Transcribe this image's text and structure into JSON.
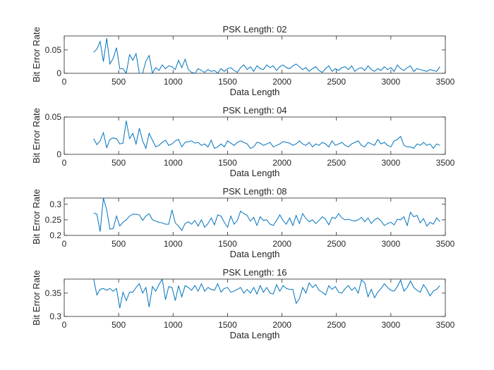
{
  "chart_data": [
    {
      "type": "line",
      "title": "PSK Length: 02",
      "xlabel": "Data Length",
      "ylabel": "Bit Error Rate",
      "xlim": [
        0,
        3500
      ],
      "ylim": [
        0,
        0.08
      ],
      "xticks": [
        0,
        500,
        1000,
        1500,
        2000,
        2500,
        3000,
        3500
      ],
      "xtick_labels": [
        "0",
        "500",
        "1000",
        "1500",
        "2000",
        "2500",
        "3000",
        "3500"
      ],
      "yticks": [
        0,
        0.05
      ],
      "ytick_labels": [
        "0",
        "0.05"
      ],
      "line_color": "#0072bd",
      "x": [
        270,
        300,
        330,
        360,
        390,
        420,
        450,
        480,
        510,
        540,
        570,
        600,
        630,
        660,
        690,
        720,
        750,
        780,
        810,
        840,
        870,
        900,
        930,
        960,
        990,
        1020,
        1050,
        1080,
        1110,
        1140,
        1170,
        1200,
        1230,
        1260,
        1290,
        1320,
        1350,
        1380,
        1410,
        1440,
        1470,
        1500,
        1530,
        1560,
        1590,
        1620,
        1650,
        1680,
        1710,
        1740,
        1770,
        1800,
        1830,
        1860,
        1890,
        1920,
        1950,
        1980,
        2010,
        2040,
        2070,
        2100,
        2130,
        2160,
        2190,
        2220,
        2250,
        2280,
        2310,
        2340,
        2370,
        2400,
        2430,
        2460,
        2490,
        2520,
        2550,
        2580,
        2610,
        2640,
        2670,
        2700,
        2730,
        2760,
        2790,
        2820,
        2850,
        2880,
        2910,
        2940,
        2970,
        3000,
        3030,
        3060,
        3090,
        3120,
        3150,
        3180,
        3210,
        3240,
        3270,
        3300,
        3330,
        3360,
        3390,
        3420,
        3450
      ],
      "y": [
        0.045,
        0.052,
        0.068,
        0.025,
        0.075,
        0.02,
        0.032,
        0.055,
        0.01,
        0.01,
        0.0,
        0.04,
        0.028,
        0.042,
        0.0,
        0.0,
        0.026,
        0.038,
        0.0,
        0.012,
        0.006,
        0.018,
        0.01,
        0.016,
        0.014,
        0.008,
        0.028,
        0.012,
        0.03,
        0.008,
        0.002,
        0.0,
        0.01,
        0.006,
        0.002,
        0.008,
        0.004,
        0.006,
        0.0,
        0.01,
        0.004,
        0.01,
        0.012,
        0.006,
        0.002,
        0.012,
        0.018,
        0.008,
        0.014,
        0.004,
        0.016,
        0.01,
        0.008,
        0.018,
        0.012,
        0.016,
        0.006,
        0.014,
        0.018,
        0.012,
        0.01,
        0.016,
        0.02,
        0.014,
        0.008,
        0.012,
        0.004,
        0.01,
        0.014,
        0.006,
        0.002,
        0.01,
        0.016,
        0.004,
        0.01,
        0.006,
        0.012,
        0.014,
        0.008,
        0.016,
        0.004,
        0.01,
        0.012,
        0.006,
        0.016,
        0.008,
        0.004,
        0.01,
        0.006,
        0.014,
        0.008,
        0.012,
        0.004,
        0.018,
        0.01,
        0.006,
        0.012,
        0.016,
        0.004,
        0.01,
        0.008,
        0.006,
        0.004,
        0.008,
        0.006,
        0.004,
        0.014
      ]
    },
    {
      "type": "line",
      "title": "PSK Length: 04",
      "xlabel": "Data Length",
      "ylabel": "Bit Error Rate",
      "xlim": [
        0,
        3500
      ],
      "ylim": [
        0,
        0.05
      ],
      "xticks": [
        0,
        500,
        1000,
        1500,
        2000,
        2500,
        3000,
        3500
      ],
      "xtick_labels": [
        "0",
        "500",
        "1000",
        "1500",
        "2000",
        "2500",
        "3000",
        "3500"
      ],
      "yticks": [
        0,
        0.05
      ],
      "ytick_labels": [
        "0",
        "0.05"
      ],
      "line_color": "#0072bd",
      "x": [
        270,
        300,
        330,
        360,
        390,
        420,
        450,
        480,
        510,
        540,
        570,
        600,
        630,
        660,
        690,
        720,
        750,
        780,
        810,
        840,
        870,
        900,
        930,
        960,
        990,
        1020,
        1050,
        1080,
        1110,
        1140,
        1170,
        1200,
        1230,
        1260,
        1290,
        1320,
        1350,
        1380,
        1410,
        1440,
        1470,
        1500,
        1530,
        1560,
        1590,
        1620,
        1650,
        1680,
        1710,
        1740,
        1770,
        1800,
        1830,
        1860,
        1890,
        1920,
        1950,
        1980,
        2010,
        2040,
        2070,
        2100,
        2130,
        2160,
        2190,
        2220,
        2250,
        2280,
        2310,
        2340,
        2370,
        2400,
        2430,
        2460,
        2490,
        2520,
        2550,
        2580,
        2610,
        2640,
        2670,
        2700,
        2730,
        2760,
        2790,
        2820,
        2850,
        2880,
        2910,
        2940,
        2970,
        3000,
        3030,
        3060,
        3090,
        3120,
        3150,
        3180,
        3210,
        3240,
        3270,
        3300,
        3330,
        3360,
        3390,
        3420,
        3450
      ],
      "y": [
        0.021,
        0.013,
        0.018,
        0.029,
        0.009,
        0.02,
        0.022,
        0.021,
        0.014,
        0.015,
        0.045,
        0.021,
        0.028,
        0.014,
        0.035,
        0.018,
        0.008,
        0.028,
        0.019,
        0.01,
        0.012,
        0.016,
        0.019,
        0.012,
        0.014,
        0.018,
        0.02,
        0.01,
        0.016,
        0.017,
        0.018,
        0.015,
        0.016,
        0.012,
        0.014,
        0.01,
        0.019,
        0.008,
        0.01,
        0.014,
        0.01,
        0.018,
        0.015,
        0.012,
        0.016,
        0.018,
        0.016,
        0.014,
        0.008,
        0.01,
        0.016,
        0.015,
        0.012,
        0.014,
        0.016,
        0.01,
        0.012,
        0.014,
        0.017,
        0.016,
        0.015,
        0.012,
        0.014,
        0.018,
        0.014,
        0.012,
        0.016,
        0.01,
        0.014,
        0.012,
        0.016,
        0.014,
        0.01,
        0.018,
        0.012,
        0.014,
        0.016,
        0.012,
        0.01,
        0.014,
        0.016,
        0.018,
        0.012,
        0.01,
        0.016,
        0.014,
        0.012,
        0.02,
        0.014,
        0.016,
        0.012,
        0.01,
        0.018,
        0.02,
        0.024,
        0.012,
        0.01,
        0.01,
        0.008,
        0.014,
        0.012,
        0.016,
        0.012,
        0.014,
        0.008,
        0.014,
        0.012
      ]
    },
    {
      "type": "line",
      "title": "PSK Length: 08",
      "xlabel": "Data Length",
      "ylabel": "Bit Error Rate",
      "xlim": [
        0,
        3500
      ],
      "ylim": [
        0.2,
        0.32
      ],
      "xticks": [
        0,
        500,
        1000,
        1500,
        2000,
        2500,
        3000,
        3500
      ],
      "xtick_labels": [
        "0",
        "500",
        "1000",
        "1500",
        "2000",
        "2500",
        "3000",
        "3500"
      ],
      "yticks": [
        0.2,
        0.25,
        0.3
      ],
      "ytick_labels": [
        "0.2",
        "0.25",
        "0.3"
      ],
      "line_color": "#0072bd",
      "x": [
        270,
        300,
        330,
        360,
        390,
        420,
        450,
        480,
        510,
        540,
        570,
        600,
        630,
        660,
        690,
        720,
        750,
        780,
        810,
        840,
        870,
        900,
        930,
        960,
        990,
        1020,
        1050,
        1080,
        1110,
        1140,
        1170,
        1200,
        1230,
        1260,
        1290,
        1320,
        1350,
        1380,
        1410,
        1440,
        1470,
        1500,
        1530,
        1560,
        1590,
        1620,
        1650,
        1680,
        1710,
        1740,
        1770,
        1800,
        1830,
        1860,
        1890,
        1920,
        1950,
        1980,
        2010,
        2040,
        2070,
        2100,
        2130,
        2160,
        2190,
        2220,
        2250,
        2280,
        2310,
        2340,
        2370,
        2400,
        2430,
        2460,
        2490,
        2520,
        2550,
        2580,
        2610,
        2640,
        2670,
        2700,
        2730,
        2760,
        2790,
        2820,
        2850,
        2880,
        2910,
        2940,
        2970,
        3000,
        3030,
        3060,
        3090,
        3120,
        3150,
        3180,
        3210,
        3240,
        3270,
        3300,
        3330,
        3360,
        3390,
        3420,
        3450
      ],
      "y": [
        0.272,
        0.268,
        0.212,
        0.32,
        0.282,
        0.22,
        0.222,
        0.262,
        0.23,
        0.242,
        0.25,
        0.262,
        0.268,
        0.268,
        0.266,
        0.248,
        0.262,
        0.27,
        0.25,
        0.246,
        0.242,
        0.24,
        0.236,
        0.236,
        0.282,
        0.24,
        0.23,
        0.216,
        0.238,
        0.244,
        0.236,
        0.248,
        0.23,
        0.25,
        0.226,
        0.238,
        0.256,
        0.234,
        0.266,
        0.262,
        0.242,
        0.226,
        0.262,
        0.236,
        0.248,
        0.278,
        0.27,
        0.264,
        0.246,
        0.258,
        0.232,
        0.26,
        0.248,
        0.25,
        0.236,
        0.232,
        0.248,
        0.266,
        0.248,
        0.236,
        0.256,
        0.232,
        0.264,
        0.238,
        0.27,
        0.254,
        0.244,
        0.25,
        0.238,
        0.248,
        0.26,
        0.252,
        0.234,
        0.258,
        0.254,
        0.27,
        0.256,
        0.25,
        0.252,
        0.248,
        0.246,
        0.25,
        0.258,
        0.244,
        0.256,
        0.238,
        0.25,
        0.256,
        0.246,
        0.232,
        0.238,
        0.242,
        0.234,
        0.252,
        0.25,
        0.26,
        0.232,
        0.274,
        0.26,
        0.264,
        0.24,
        0.254,
        0.23,
        0.242,
        0.236,
        0.256,
        0.244
      ]
    },
    {
      "type": "line",
      "title": "PSK Length: 16",
      "xlabel": "Data Length",
      "ylabel": "Bit Error Rate",
      "xlim": [
        0,
        3500
      ],
      "ylim": [
        0.3,
        0.38
      ],
      "xticks": [
        0,
        500,
        1000,
        1500,
        2000,
        2500,
        3000,
        3500
      ],
      "xtick_labels": [
        "0",
        "500",
        "1000",
        "1500",
        "2000",
        "2500",
        "3000",
        "3500"
      ],
      "yticks": [
        0.3,
        0.35
      ],
      "ytick_labels": [
        "0.3",
        "0.35"
      ],
      "line_color": "#0072bd",
      "x": [
        270,
        300,
        330,
        360,
        390,
        420,
        450,
        480,
        510,
        540,
        570,
        600,
        630,
        660,
        690,
        720,
        750,
        780,
        810,
        840,
        870,
        900,
        930,
        960,
        990,
        1020,
        1050,
        1080,
        1110,
        1140,
        1170,
        1200,
        1230,
        1260,
        1290,
        1320,
        1350,
        1380,
        1410,
        1440,
        1470,
        1500,
        1530,
        1560,
        1590,
        1620,
        1650,
        1680,
        1710,
        1740,
        1770,
        1800,
        1830,
        1860,
        1890,
        1920,
        1950,
        1980,
        2010,
        2040,
        2070,
        2100,
        2130,
        2160,
        2190,
        2220,
        2250,
        2280,
        2310,
        2340,
        2370,
        2400,
        2430,
        2460,
        2490,
        2520,
        2550,
        2580,
        2610,
        2640,
        2670,
        2700,
        2730,
        2760,
        2790,
        2820,
        2850,
        2880,
        2910,
        2940,
        2970,
        3000,
        3030,
        3060,
        3090,
        3120,
        3150,
        3180,
        3210,
        3240,
        3270,
        3300,
        3330,
        3360,
        3390,
        3420,
        3450
      ],
      "y": [
        0.38,
        0.346,
        0.358,
        0.36,
        0.356,
        0.36,
        0.354,
        0.36,
        0.318,
        0.352,
        0.334,
        0.352,
        0.352,
        0.362,
        0.37,
        0.35,
        0.362,
        0.32,
        0.364,
        0.354,
        0.368,
        0.38,
        0.336,
        0.364,
        0.362,
        0.334,
        0.366,
        0.342,
        0.366,
        0.362,
        0.356,
        0.366,
        0.354,
        0.37,
        0.354,
        0.362,
        0.358,
        0.356,
        0.37,
        0.352,
        0.36,
        0.362,
        0.352,
        0.354,
        0.358,
        0.362,
        0.35,
        0.358,
        0.35,
        0.362,
        0.348,
        0.366,
        0.352,
        0.362,
        0.35,
        0.348,
        0.368,
        0.354,
        0.366,
        0.36,
        0.358,
        0.358,
        0.328,
        0.338,
        0.362,
        0.35,
        0.372,
        0.362,
        0.368,
        0.356,
        0.352,
        0.346,
        0.366,
        0.358,
        0.364,
        0.352,
        0.35,
        0.36,
        0.366,
        0.356,
        0.362,
        0.35,
        0.378,
        0.372,
        0.342,
        0.358,
        0.34,
        0.352,
        0.36,
        0.37,
        0.362,
        0.356,
        0.354,
        0.364,
        0.378,
        0.354,
        0.362,
        0.376,
        0.362,
        0.356,
        0.352,
        0.368,
        0.358,
        0.344,
        0.354,
        0.358,
        0.366
      ]
    }
  ]
}
